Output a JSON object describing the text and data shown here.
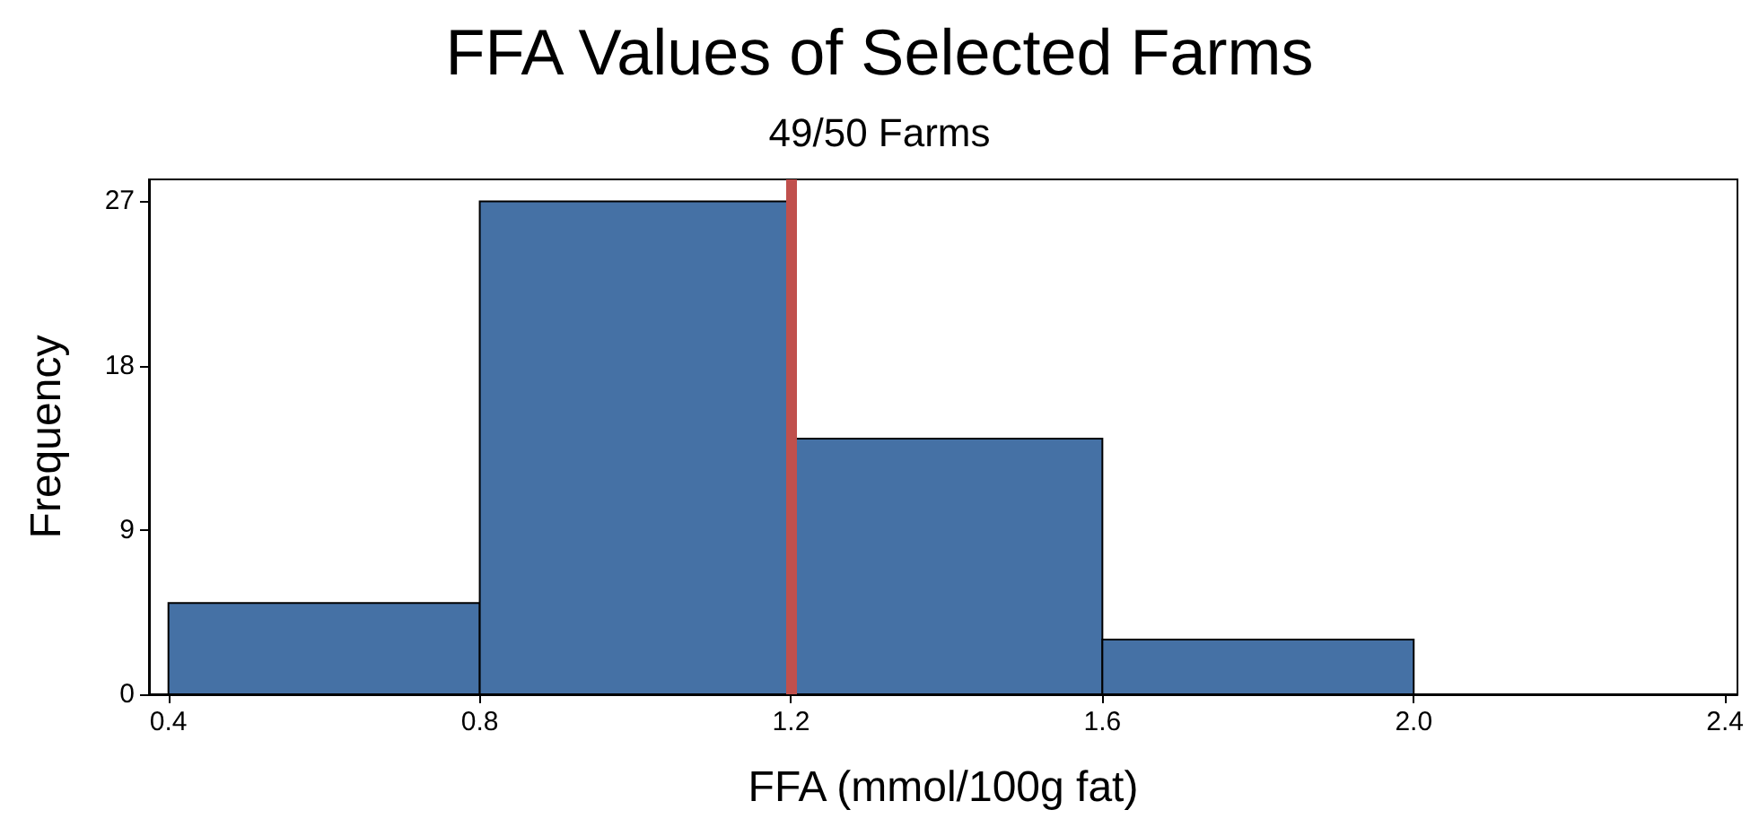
{
  "chart_data": {
    "type": "histogram",
    "title": "FFA Values of Selected Farms",
    "subtitle": "49/50 Farms",
    "xlabel": "FFA (mmol/100g fat)",
    "ylabel": "Frequency",
    "bins": [
      0.4,
      0.8,
      1.2,
      1.6,
      2.0
    ],
    "values": [
      5,
      27,
      14,
      3
    ],
    "color": "#4571a5",
    "xlim": [
      0.375,
      2.416
    ],
    "xticks": [
      0.4,
      0.8,
      1.2,
      1.6,
      {
        "value": 2,
        "label": "2.0"
      },
      2.4
    ],
    "ylim": [
      0,
      28.2
    ],
    "yticks": [
      0,
      9,
      18,
      27
    ],
    "grid": false,
    "ref_lines": [
      {
        "axis": "x",
        "value": 1.2,
        "color": "#c0504d"
      }
    ]
  }
}
